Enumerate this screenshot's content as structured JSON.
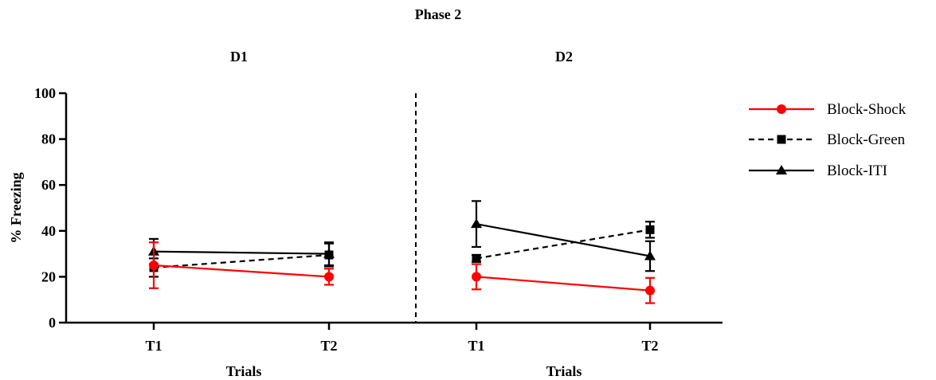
{
  "chart_data": {
    "type": "line",
    "title": "Phase 2",
    "ylabel": "% Freezing",
    "xlabel": "Trials",
    "ylim": [
      0,
      100
    ],
    "yticks": [
      0,
      20,
      40,
      60,
      80,
      100
    ],
    "legend_position": "right",
    "panels": [
      {
        "name": "D1",
        "categories": [
          "T1",
          "T2"
        ]
      },
      {
        "name": "D2",
        "categories": [
          "T1",
          "T2"
        ]
      }
    ],
    "series": [
      {
        "name": "Block-Shock",
        "color": "#ff0000",
        "dash": "solid",
        "marker": "circle",
        "values": [
          25,
          20,
          20,
          14
        ],
        "error": [
          10,
          3.5,
          5.5,
          5.5
        ]
      },
      {
        "name": "Block-Green",
        "color": "#000000",
        "dash": "dashed",
        "marker": "square",
        "values": [
          24,
          29.5,
          28,
          40.5
        ],
        "error": [
          4,
          5,
          1.5,
          3.5
        ]
      },
      {
        "name": "Block-ITI",
        "color": "#000000",
        "dash": "solid",
        "marker": "triangle",
        "values": [
          31,
          30,
          43,
          29
        ],
        "error": [
          5.5,
          5,
          10,
          6.5
        ]
      }
    ]
  }
}
